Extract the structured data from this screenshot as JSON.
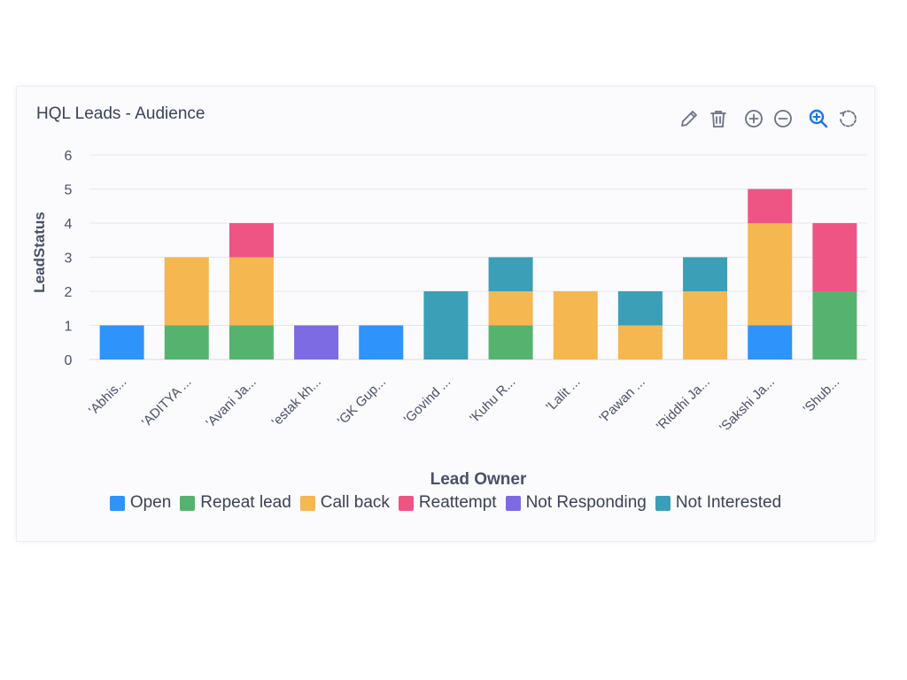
{
  "card": {
    "title": "HQL Leads - Audience"
  },
  "toolbar": {
    "icons": [
      "pencil-icon",
      "trash-icon",
      "zoom-in-icon",
      "zoom-out-icon",
      "magnifier-icon",
      "reset-icon"
    ],
    "active_color": "#1a73e8",
    "icon_color": "#6b7085"
  },
  "chart_data": {
    "type": "bar",
    "stacked": true,
    "xlabel": "Lead Owner",
    "ylabel": "LeadStatus",
    "ylim": [
      0,
      6
    ],
    "yticks": [
      0,
      1,
      2,
      3,
      4,
      5,
      6
    ],
    "grid": true,
    "legend_position": "bottom",
    "categories": [
      "'Abhis...",
      "'ADITYA ...",
      "'Avani Ja...",
      "'estak kh...",
      "'GK Gup...",
      "'Govind ...",
      "'Kuhu R...",
      "'Lalit ...",
      "'Pawan ...",
      "'Riddhi Ja...",
      "'Sakshi Ja...",
      "'Shub..."
    ],
    "series": [
      {
        "name": "Open",
        "color": "#2e93fa",
        "values": [
          1,
          0,
          0,
          0,
          1,
          0,
          0,
          0,
          0,
          0,
          1,
          0
        ]
      },
      {
        "name": "Repeat lead",
        "color": "#56b36f",
        "values": [
          0,
          1,
          1,
          0,
          0,
          0,
          1,
          0,
          0,
          0,
          0,
          2
        ]
      },
      {
        "name": "Call back",
        "color": "#f5b74f",
        "values": [
          0,
          2,
          2,
          0,
          0,
          0,
          1,
          2,
          1,
          2,
          3,
          0
        ]
      },
      {
        "name": "Reattempt",
        "color": "#ee5584",
        "values": [
          0,
          0,
          1,
          0,
          0,
          0,
          0,
          0,
          0,
          0,
          1,
          2
        ]
      },
      {
        "name": "Not Responding",
        "color": "#7d6be3",
        "values": [
          0,
          0,
          0,
          1,
          0,
          0,
          0,
          0,
          0,
          0,
          0,
          0
        ]
      },
      {
        "name": "Not Interested",
        "color": "#3b9fb8",
        "values": [
          0,
          0,
          0,
          0,
          0,
          2,
          1,
          0,
          1,
          1,
          0,
          0
        ]
      }
    ]
  }
}
